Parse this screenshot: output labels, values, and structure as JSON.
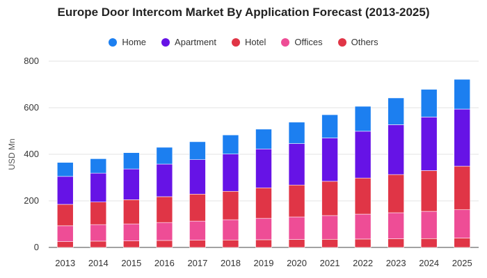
{
  "chart_data": {
    "type": "bar",
    "stacked": true,
    "title": "Europe Door Intercom Market By Application Forecast (2013-2025)",
    "xlabel": "",
    "ylabel": "USD Mn",
    "ylim": [
      0,
      800
    ],
    "yticks": [
      0,
      200,
      400,
      600,
      800
    ],
    "grid": true,
    "legend_position": "top",
    "categories": [
      "2013",
      "2014",
      "2015",
      "2016",
      "2017",
      "2018",
      "2019",
      "2020",
      "2021",
      "2022",
      "2023",
      "2024",
      "2025"
    ],
    "series": [
      {
        "name": "Others",
        "color": "#e03546",
        "values": [
          25,
          27,
          28,
          30,
          31,
          32,
          33,
          34,
          35,
          36,
          37,
          38,
          40
        ]
      },
      {
        "name": "Offices",
        "color": "#ee4d96",
        "values": [
          68,
          71,
          73,
          77,
          82,
          87,
          92,
          97,
          102,
          107,
          112,
          117,
          122
        ]
      },
      {
        "name": "Hotel",
        "color": "#e03546",
        "values": [
          92,
          97,
          104,
          111,
          116,
          122,
          131,
          137,
          147,
          155,
          164,
          175,
          187
        ]
      },
      {
        "name": "Apartment",
        "color": "#6613e6",
        "values": [
          120,
          124,
          132,
          140,
          148,
          160,
          167,
          178,
          186,
          201,
          214,
          230,
          245
        ]
      },
      {
        "name": "Home",
        "color": "#1c7ff0",
        "values": [
          60,
          62,
          70,
          72,
          77,
          82,
          85,
          92,
          100,
          107,
          115,
          119,
          128
        ]
      }
    ],
    "legend_order": [
      "Home",
      "Apartment",
      "Hotel",
      "Offices",
      "Others"
    ]
  }
}
